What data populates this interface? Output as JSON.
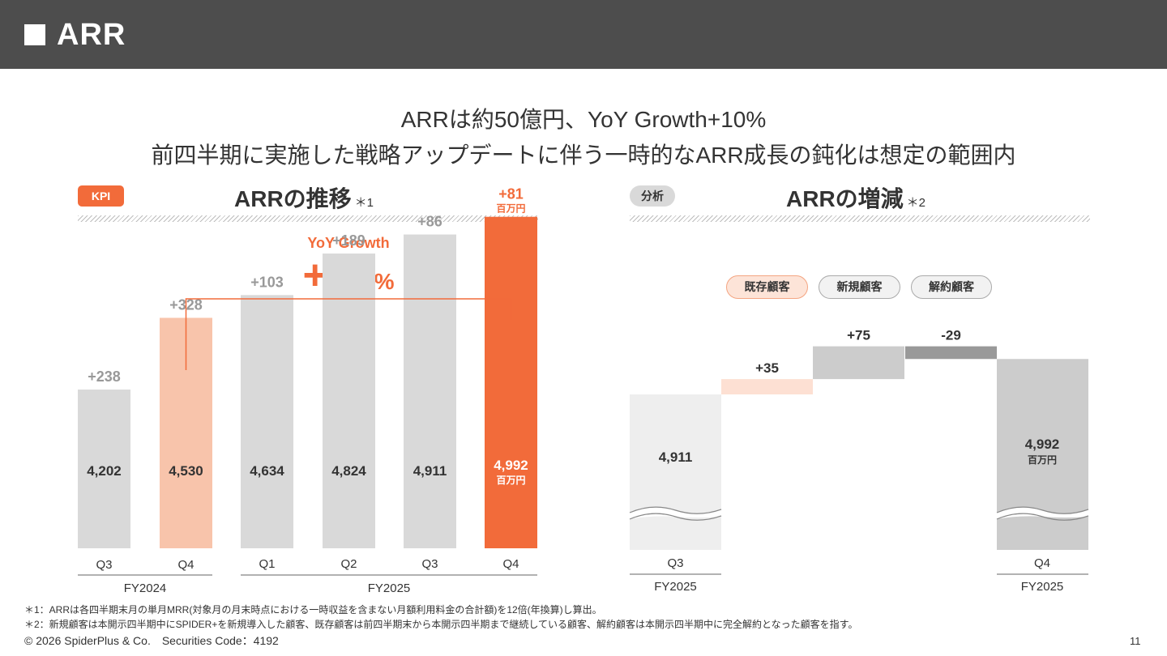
{
  "header": {
    "title": "ARR"
  },
  "headline": {
    "line1": "ARRは約50億円、YoY Growth+10%",
    "line2": "前四半期に実施した戦略アップデートに伴う一時的なARR成長の鈍化は想定の範囲内"
  },
  "left_section": {
    "badge": "KPI",
    "title": "ARRの推移",
    "note": "＊1",
    "yoy_label": "YoY Growth",
    "yoy_value": "+10",
    "yoy_unit": "%"
  },
  "right_section": {
    "badge": "分析",
    "title": "ARRの増減",
    "note": "＊2",
    "legend": [
      "既存顧客",
      "新規顧客",
      "解約顧客"
    ]
  },
  "chart_data": [
    {
      "type": "bar",
      "title": "ARRの推移",
      "unit": "百万円",
      "categories": [
        "Q3",
        "Q4",
        "Q1",
        "Q2",
        "Q3",
        "Q4"
      ],
      "fiscal_years": [
        {
          "label": "FY2024",
          "from": 0,
          "to": 1
        },
        {
          "label": "FY2025",
          "from": 2,
          "to": 5
        }
      ],
      "values": [
        4202,
        4530,
        4634,
        4824,
        4911,
        4992
      ],
      "labels": [
        "4,202",
        "4,530",
        "4,634",
        "4,824",
        "4,911",
        "4,992"
      ],
      "increments": [
        "+238",
        "+328",
        "+103",
        "+189",
        "+86",
        "+81"
      ],
      "colors": [
        "#d9d9d9",
        "#f8c4ab",
        "#d9d9d9",
        "#d9d9d9",
        "#d9d9d9",
        "#f26b3a"
      ],
      "highlight_unit_index": 5
    },
    {
      "type": "bar",
      "title": "ARRの増減",
      "subtype": "waterfall",
      "unit": "百万円",
      "start": {
        "category": "Q3",
        "fiscal_year": "FY2025",
        "value": 4911,
        "label": "4,911"
      },
      "steps": [
        {
          "name": "既存顧客",
          "value": 35,
          "label": "+35",
          "color": "#fde0d3"
        },
        {
          "name": "新規顧客",
          "value": 75,
          "label": "+75",
          "color": "#cccccc"
        },
        {
          "name": "解約顧客",
          "value": -29,
          "label": "-29",
          "color": "#999999"
        }
      ],
      "end": {
        "category": "Q4",
        "fiscal_year": "FY2025",
        "value": 4992,
        "label": "4,992",
        "unit_label": "百万円"
      }
    }
  ],
  "footnotes": {
    "f1": "＊1：ARRは各四半期末月の単月MRR(対象月の月末時点における一時収益を含まない月額利用料金の合計額)を12倍(年換算)し算出。",
    "f2": "＊2：新規顧客は本開示四半期中にSPIDER+を新規導入した顧客、既存顧客は前四半期末から本開示四半期まで継続している顧客、解約顧客は本開示四半期中に完全解約となった顧客を指す。"
  },
  "footer": {
    "copyright": "© 2026 SpiderPlus & Co.　Securities Code：4192",
    "page_number": "11"
  }
}
